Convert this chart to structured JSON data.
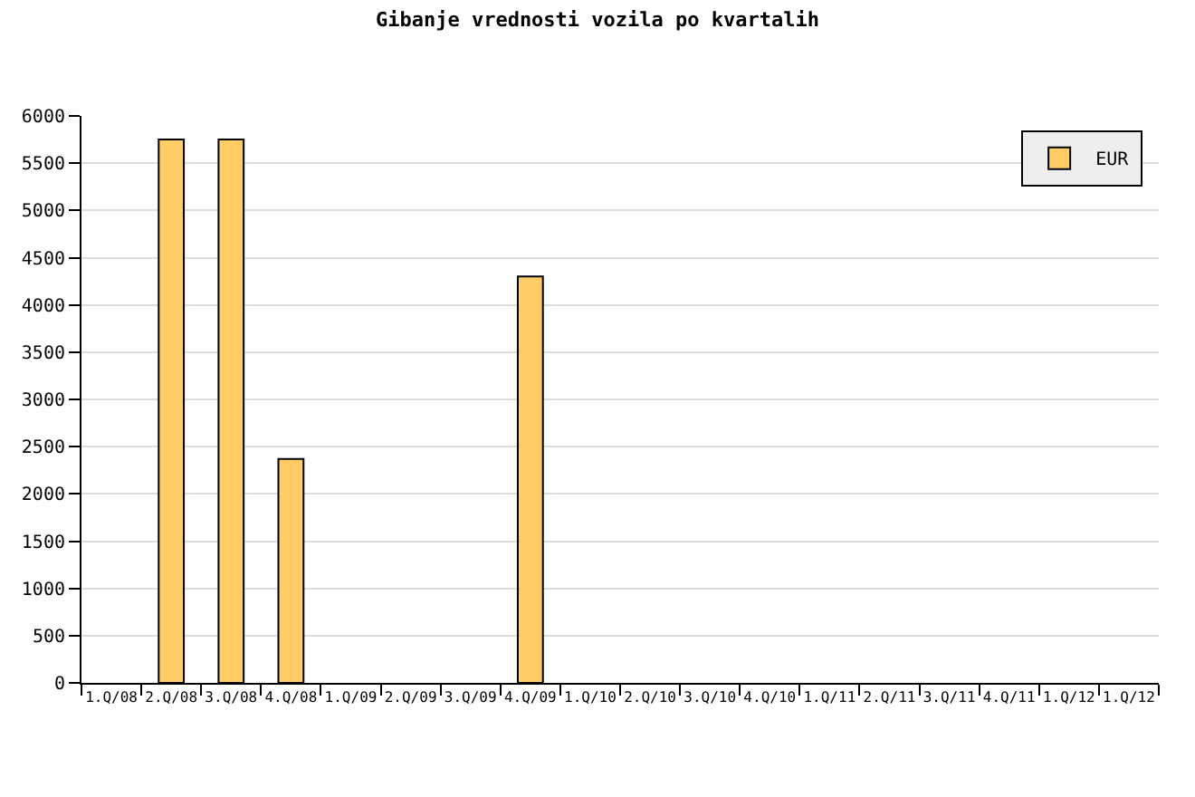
{
  "chart_data": {
    "type": "bar",
    "title": "Gibanje vrednosti vozila po kvartalih",
    "categories": [
      "1.Q/08",
      "2.Q/08",
      "3.Q/08",
      "4.Q/08",
      "1.Q/09",
      "2.Q/09",
      "3.Q/09",
      "4.Q/09",
      "1.Q/10",
      "2.Q/10",
      "3.Q/10",
      "4.Q/10",
      "1.Q/11",
      "2.Q/11",
      "3.Q/11",
      "4.Q/11",
      "1.Q/12",
      "1.Q/12"
    ],
    "series": [
      {
        "name": "EUR",
        "color": "#ffcc66",
        "values": [
          null,
          5750,
          5750,
          2370,
          null,
          null,
          null,
          4300,
          null,
          null,
          null,
          null,
          null,
          null,
          null,
          null,
          null,
          null
        ]
      }
    ],
    "ylim": [
      0,
      6000
    ],
    "yticks": [
      0,
      500,
      1000,
      1500,
      2000,
      2500,
      3000,
      3500,
      4000,
      4500,
      5000,
      5500,
      6000
    ],
    "grid": "y",
    "legend": "top right"
  }
}
